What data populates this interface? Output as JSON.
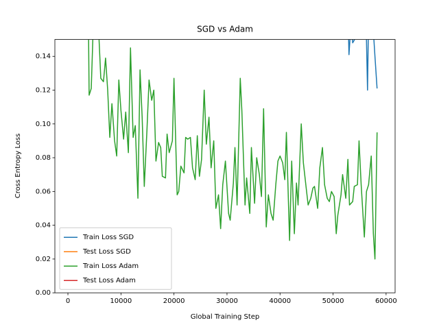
{
  "chart_data": {
    "type": "line",
    "title": "SGD vs Adam",
    "xlabel": "Global Training Step",
    "ylabel": "Cross Entropy Loss",
    "xlim": [
      -2460,
      61700
    ],
    "xticks": [
      0,
      10000,
      20000,
      30000,
      40000,
      50000,
      60000
    ],
    "ylim": [
      0,
      0.15
    ],
    "yticks": [
      {
        "value": 0,
        "label": "0.00"
      },
      {
        "value": 0.02,
        "label": "0.02"
      },
      {
        "value": 0.04,
        "label": "0.04"
      },
      {
        "value": 0.06,
        "label": "0.06"
      },
      {
        "value": 0.08,
        "label": "0.08"
      },
      {
        "value": 0.1,
        "label": "0.10"
      },
      {
        "value": 0.12,
        "label": "0.12"
      },
      {
        "value": 0.14,
        "label": "0.14"
      }
    ],
    "legend": "lower left",
    "series": [
      {
        "name": "Train Loss SGD",
        "color": "#1f77b4",
        "x": [
          52800,
          53000,
          53400,
          53700,
          55900,
          56300,
          56500,
          56700,
          57600,
          57900,
          58300
        ],
        "values": [
          0.17,
          0.141,
          0.16,
          0.148,
          0.16,
          0.15,
          0.12,
          0.165,
          0.155,
          0.14,
          0.121
        ]
      },
      {
        "name": "Test Loss SGD",
        "color": "#ff7f0e",
        "x": [],
        "values": []
      },
      {
        "name": "Train Loss Adam",
        "color": "#2ca02c",
        "x": [
          3750,
          4000,
          4400,
          4900,
          5400,
          5800,
          6200,
          6700,
          7100,
          7500,
          7900,
          8300,
          8800,
          9200,
          9600,
          10000,
          10500,
          10900,
          11400,
          11800,
          12300,
          12700,
          13200,
          13600,
          14000,
          14400,
          14900,
          15300,
          15800,
          16200,
          16600,
          17100,
          17500,
          17800,
          18400,
          18700,
          19100,
          19700,
          20000,
          20600,
          20900,
          21300,
          21900,
          22200,
          22600,
          23100,
          23500,
          24000,
          24400,
          24800,
          25200,
          25700,
          26100,
          26600,
          27000,
          27500,
          27900,
          28400,
          28800,
          29200,
          29700,
          30300,
          30600,
          31200,
          31500,
          31900,
          32500,
          32800,
          33400,
          33700,
          34300,
          34600,
          35200,
          35600,
          36100,
          36500,
          36900,
          37400,
          37800,
          38300,
          38700,
          39200,
          39600,
          40000,
          40500,
          40900,
          41200,
          41800,
          42200,
          42700,
          43100,
          43400,
          44000,
          44400,
          44900,
          45300,
          45800,
          46200,
          46500,
          47100,
          47500,
          48000,
          48400,
          48900,
          49300,
          49700,
          50200,
          50600,
          50900,
          51500,
          51800,
          52400,
          52800,
          53100,
          53700,
          54000,
          54600,
          54900,
          55300,
          55900,
          56300,
          56700,
          57200,
          57600,
          57900,
          58300
        ],
        "values": [
          0.2,
          0.117,
          0.121,
          0.17,
          0.16,
          0.155,
          0.127,
          0.125,
          0.139,
          0.12,
          0.092,
          0.112,
          0.09,
          0.081,
          0.126,
          0.108,
          0.091,
          0.107,
          0.083,
          0.145,
          0.092,
          0.099,
          0.056,
          0.132,
          0.104,
          0.063,
          0.096,
          0.126,
          0.114,
          0.12,
          0.078,
          0.089,
          0.086,
          0.069,
          0.068,
          0.094,
          0.083,
          0.09,
          0.127,
          0.058,
          0.06,
          0.075,
          0.071,
          0.092,
          0.091,
          0.092,
          0.074,
          0.067,
          0.093,
          0.069,
          0.079,
          0.12,
          0.088,
          0.104,
          0.074,
          0.09,
          0.05,
          0.058,
          0.038,
          0.064,
          0.078,
          0.047,
          0.043,
          0.065,
          0.086,
          0.052,
          0.127,
          0.108,
          0.052,
          0.068,
          0.047,
          0.086,
          0.053,
          0.08,
          0.07,
          0.057,
          0.109,
          0.039,
          0.058,
          0.047,
          0.043,
          0.064,
          0.078,
          0.081,
          0.077,
          0.067,
          0.095,
          0.031,
          0.078,
          0.035,
          0.065,
          0.052,
          0.1,
          0.077,
          0.063,
          0.052,
          0.056,
          0.062,
          0.063,
          0.05,
          0.074,
          0.086,
          0.064,
          0.056,
          0.054,
          0.06,
          0.057,
          0.035,
          0.046,
          0.058,
          0.07,
          0.056,
          0.079,
          0.052,
          0.054,
          0.063,
          0.064,
          0.09,
          0.064,
          0.033,
          0.06,
          0.064,
          0.081,
          0.035,
          0.02,
          0.095
        ]
      },
      {
        "name": "Test Loss Adam",
        "color": "#d62728",
        "x": [],
        "values": []
      }
    ]
  }
}
